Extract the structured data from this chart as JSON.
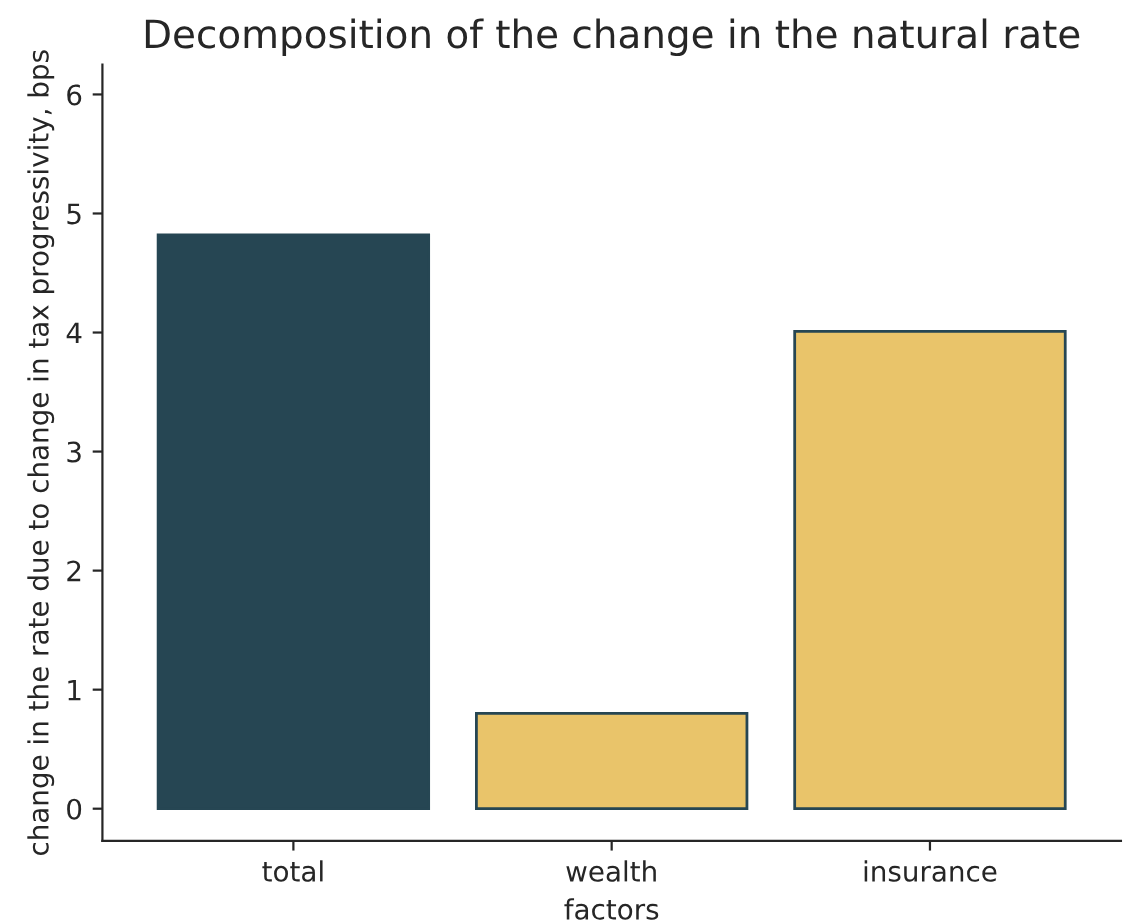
{
  "chart_data": {
    "type": "bar",
    "title": "Decomposition of the change in the natural rate",
    "xlabel": "factors",
    "ylabel": "change in the rate due to change in tax progressivity, bps",
    "categories": [
      "total",
      "wealth",
      "insurance"
    ],
    "values": [
      4.82,
      0.8,
      4.01
    ],
    "colors": [
      "#264653",
      "#e9c46a",
      "#e9c46a"
    ],
    "ylim": [
      -0.27,
      6.25
    ],
    "yticks": [
      0,
      1,
      2,
      3,
      4,
      5,
      6
    ],
    "grid": false,
    "legend": false
  }
}
